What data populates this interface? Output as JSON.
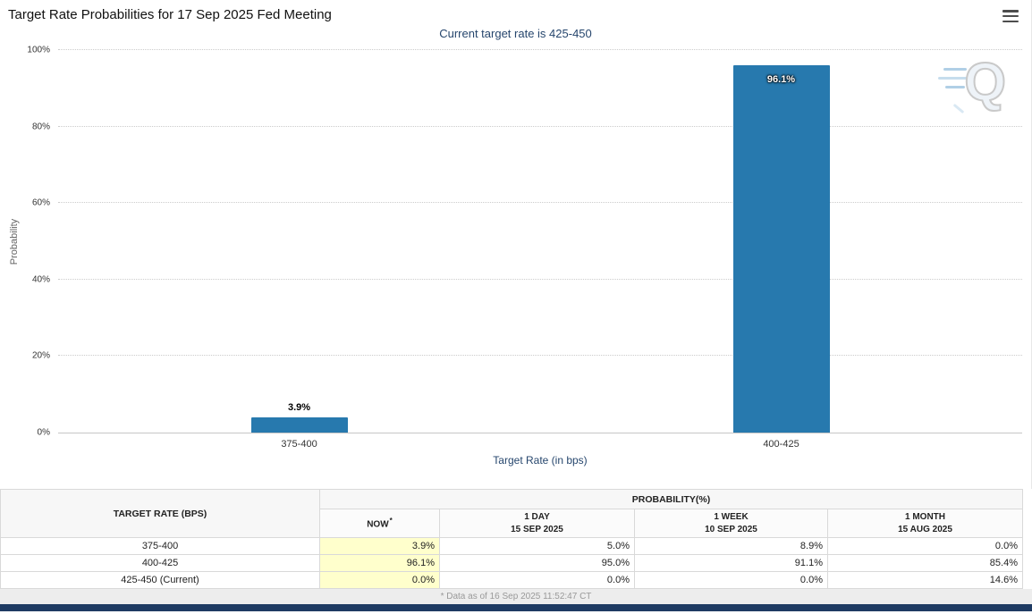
{
  "header": {
    "title": "Target Rate Probabilities for 17 Sep 2025 Fed Meeting",
    "menu_icon": "hamburger-menu"
  },
  "subtitle": "Current target rate is 425-450",
  "chart_data": {
    "type": "bar",
    "title": "Target Rate Probabilities for 17 Sep 2025 Fed Meeting",
    "subtitle": "Current target rate is 425-450",
    "categories": [
      "375-400",
      "400-425"
    ],
    "values": [
      3.9,
      96.1
    ],
    "value_labels": [
      "3.9%",
      "96.1%"
    ],
    "xlabel": "Target Rate (in bps)",
    "ylabel": "Probability",
    "ylim": [
      0,
      100
    ],
    "yticks": [
      "0%",
      "20%",
      "40%",
      "60%",
      "80%",
      "100%"
    ],
    "grid": "horizontal-dotted",
    "legend": "none"
  },
  "watermark": {
    "letter": "Q"
  },
  "table": {
    "row_header": "TARGET RATE (BPS)",
    "col_header_group": "PROBABILITY(%)",
    "columns": [
      {
        "label": "NOW",
        "mark": "*"
      },
      {
        "label": "1 DAY",
        "sub": "15 SEP 2025"
      },
      {
        "label": "1 WEEK",
        "sub": "10 SEP 2025"
      },
      {
        "label": "1 MONTH",
        "sub": "15 AUG 2025"
      }
    ],
    "rows": [
      {
        "rate": "375-400",
        "now": "3.9%",
        "d1": "5.0%",
        "w1": "8.9%",
        "m1": "0.0%"
      },
      {
        "rate": "400-425",
        "now": "96.1%",
        "d1": "95.0%",
        "w1": "91.1%",
        "m1": "85.4%"
      },
      {
        "rate": "425-450 (Current)",
        "now": "0.0%",
        "d1": "0.0%",
        "w1": "0.0%",
        "m1": "14.6%"
      }
    ],
    "footnote": "* Data as of 16 Sep 2025 11:52:47 CT"
  },
  "colors": {
    "bar": "#2779ae",
    "subtitle": "#26466d",
    "now_highlight": "#ffffcc",
    "bottom_bar": "#1f3b63"
  }
}
